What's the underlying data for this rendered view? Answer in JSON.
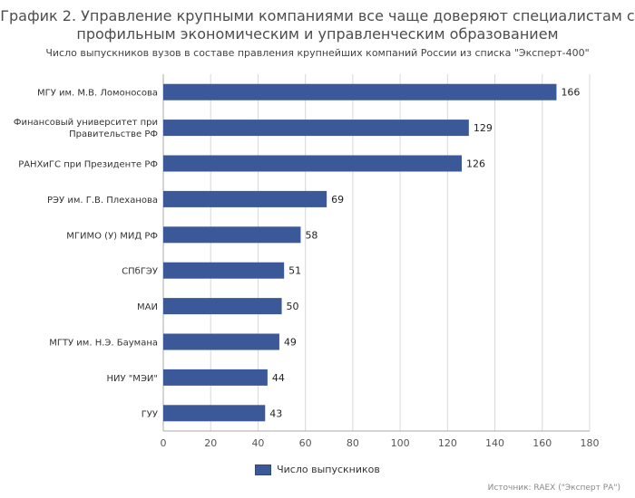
{
  "chart_data": {
    "type": "bar",
    "orientation": "horizontal",
    "title": "График 2. Управление крупными компаниями все чаще доверяют специалистам с профильным экономическим и управленческим образованием",
    "subtitle": "Число выпускников вузов в составе правления крупнейших компаний России из списка \"Эксперт-400\"",
    "categories": [
      "МГУ им. М.В. Ломоносова",
      "Финансовый университет при Правительстве РФ",
      "РАНХиГС при Президенте РФ",
      "РЭУ им. Г.В. Плеханова",
      "МГИМО (У) МИД РФ",
      "СПбГЭУ",
      "МАИ",
      "МГТУ им. Н.Э. Баумана",
      "НИУ \"МЭИ\"",
      "ГУУ"
    ],
    "series": [
      {
        "name": "Число выпускников",
        "values": [
          166,
          129,
          126,
          69,
          58,
          51,
          50,
          49,
          44,
          43
        ]
      }
    ],
    "xlim": [
      0,
      180
    ],
    "xticks": [
      0,
      20,
      40,
      60,
      80,
      100,
      120,
      140,
      160,
      180
    ],
    "grid": true,
    "legend_position": "bottom",
    "data_labels": true,
    "bar_color": "#3b5998",
    "source": "Источник: RAEX (\"Эксперт РА\")"
  }
}
